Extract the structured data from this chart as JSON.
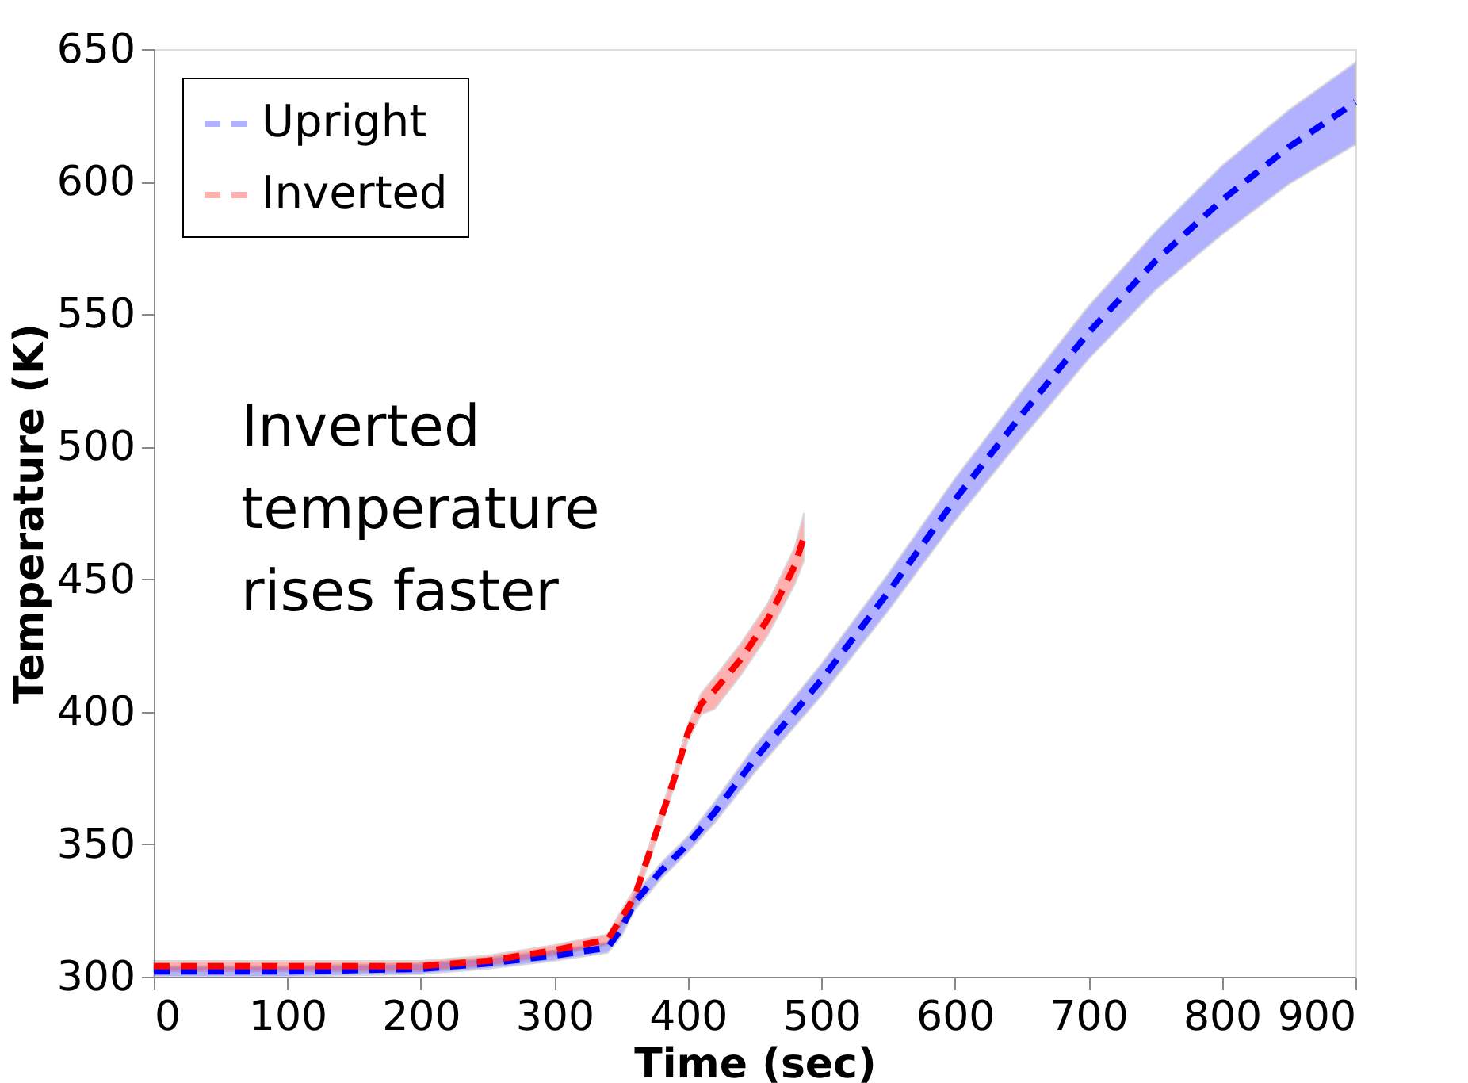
{
  "chart_data": {
    "type": "line",
    "xlabel": "Time (sec)",
    "ylabel": "Temperature (K)",
    "xlim": [
      0,
      900
    ],
    "xticks": [
      0,
      100,
      200,
      300,
      400,
      500,
      600,
      700,
      800,
      900
    ],
    "ylim": [
      300,
      650
    ],
    "yticks": [
      300,
      350,
      400,
      450,
      500,
      550,
      600,
      650
    ],
    "grid": false,
    "legend": "top left",
    "line_style": "dashed",
    "marker": "none",
    "annotations": [
      "Inverted\ntemperature\nrises faster"
    ],
    "series": [
      {
        "name": "Upright",
        "color": "#0000ff",
        "x": [
          0,
          100,
          200,
          250,
          300,
          340,
          350,
          360,
          380,
          400,
          420,
          450,
          500,
          550,
          600,
          650,
          700,
          750,
          800,
          850,
          900
        ],
        "values": [
          302,
          302,
          303,
          305,
          308,
          311,
          318,
          328,
          340,
          350,
          362,
          382,
          412,
          445,
          480,
          512,
          543,
          570,
          593,
          613,
          630
        ],
        "lower": [
          300,
          300,
          301,
          303,
          306,
          309,
          315,
          325,
          337,
          347,
          358,
          377,
          406,
          438,
          472,
          503,
          533,
          559,
          580,
          599,
          614
        ],
        "upper": [
          304,
          304,
          305,
          307,
          310,
          313,
          321,
          331,
          343,
          353,
          366,
          387,
          418,
          452,
          488,
          521,
          553,
          581,
          606,
          627,
          645
        ]
      },
      {
        "name": "Inverted",
        "color": "#ff0000",
        "x": [
          0,
          100,
          200,
          250,
          300,
          340,
          350,
          360,
          370,
          380,
          390,
          400,
          410,
          420,
          440,
          460,
          480,
          487
        ],
        "values": [
          304,
          304,
          304,
          306,
          310,
          314,
          322,
          330,
          345,
          360,
          375,
          392,
          403,
          408,
          420,
          435,
          455,
          466
        ],
        "lower": [
          302,
          302,
          302,
          304,
          308,
          312,
          319,
          327,
          342,
          357,
          372,
          389,
          399,
          401,
          414,
          429,
          448,
          457
        ],
        "upper": [
          306,
          306,
          306,
          308,
          312,
          316,
          325,
          333,
          348,
          363,
          378,
          395,
          407,
          413,
          426,
          441,
          462,
          475
        ]
      }
    ]
  }
}
